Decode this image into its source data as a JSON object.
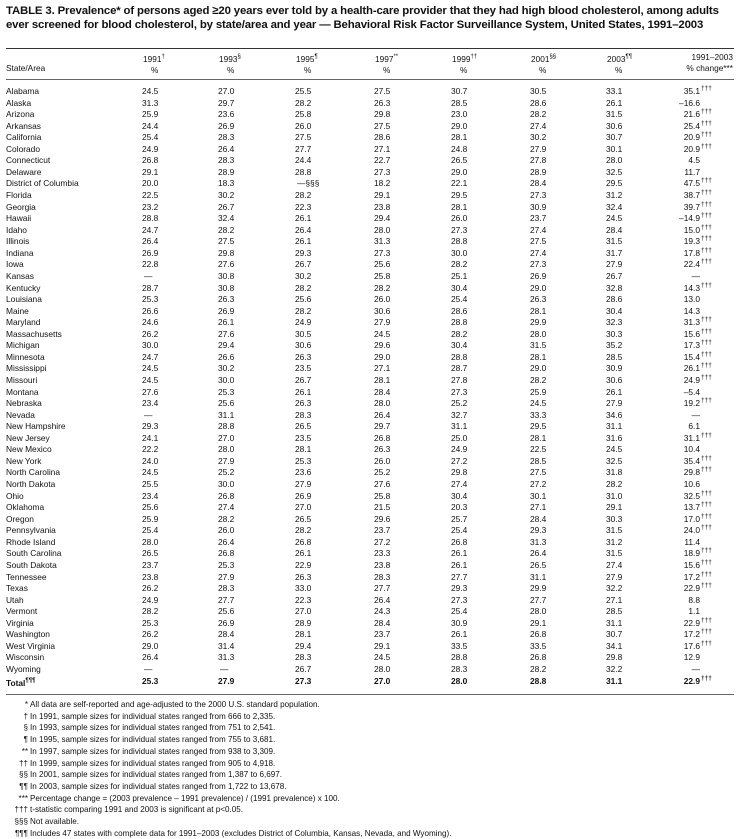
{
  "title": "TABLE 3. Prevalence* of persons aged ≥20 years ever told by a health-care provider that they had high blood cholesterol, among adults ever screened for blood cholesterol, by state/area and year — Behavioral Risk Factor Surveillance System, United States, 1991–2003",
  "headers": {
    "state": "State/Area",
    "years": [
      {
        "year": "1991",
        "mark": "†",
        "unit": "%"
      },
      {
        "year": "1993",
        "mark": "§",
        "unit": "%"
      },
      {
        "year": "1995",
        "mark": "¶",
        "unit": "%"
      },
      {
        "year": "1997",
        "mark": "**",
        "unit": "%"
      },
      {
        "year": "1999",
        "mark": "††",
        "unit": "%"
      },
      {
        "year": "2001",
        "mark": "§§",
        "unit": "%"
      },
      {
        "year": "2003",
        "mark": "¶¶",
        "unit": "%"
      }
    ],
    "change_top": "1991–2003",
    "change_bottom": "% change***"
  },
  "rows": [
    [
      "Alabama",
      "24.5",
      "27.0",
      "25.5",
      "27.5",
      "30.7",
      "30.5",
      "33.1",
      "35.1",
      "†††"
    ],
    [
      "Alaska",
      "31.3",
      "29.7",
      "28.2",
      "26.3",
      "28.5",
      "28.6",
      "26.1",
      "–16.6",
      ""
    ],
    [
      "Arizona",
      "25.9",
      "23.6",
      "25.8",
      "29.8",
      "23.0",
      "28.2",
      "31.5",
      "21.6",
      "†††"
    ],
    [
      "Arkansas",
      "24.4",
      "26.9",
      "26.0",
      "27.5",
      "29.0",
      "27.4",
      "30.6",
      "25.4",
      "†††"
    ],
    [
      "California",
      "25.4",
      "28.3",
      "27.5",
      "28.6",
      "28.1",
      "30.2",
      "30.7",
      "20.9",
      "†††"
    ],
    [
      "Colorado",
      "24.9",
      "26.4",
      "27.7",
      "27.1",
      "24.8",
      "27.9",
      "30.1",
      "20.9",
      "†††"
    ],
    [
      "Connecticut",
      "26.8",
      "28.3",
      "24.4",
      "22.7",
      "26.5",
      "27.8",
      "28.0",
      "4.5",
      ""
    ],
    [
      "Delaware",
      "29.1",
      "28.9",
      "28.8",
      "27.3",
      "29.0",
      "28.9",
      "32.5",
      "11.7",
      ""
    ],
    [
      "District of Columbia",
      "20.0",
      "18.3",
      "—§§§",
      "18.2",
      "22.1",
      "28.4",
      "29.5",
      "47.5",
      "†††"
    ],
    [
      "Florida",
      "22.5",
      "30.2",
      "28.2",
      "29.1",
      "29.5",
      "27.3",
      "31.2",
      "38.7",
      "†††"
    ],
    [
      "Georgia",
      "23.2",
      "26.7",
      "22.3",
      "23.8",
      "28.1",
      "30.9",
      "32.4",
      "39.7",
      "†††"
    ],
    [
      "Hawaii",
      "28.8",
      "32.4",
      "26.1",
      "29.4",
      "26.0",
      "23.7",
      "24.5",
      "–14.9",
      "†††"
    ],
    [
      "Idaho",
      "24.7",
      "28.2",
      "26.4",
      "28.0",
      "27.3",
      "27.4",
      "28.4",
      "15.0",
      "†††"
    ],
    [
      "Illinois",
      "26.4",
      "27.5",
      "26.1",
      "31.3",
      "28.8",
      "27.5",
      "31.5",
      "19.3",
      "†††"
    ],
    [
      "Indiana",
      "26.9",
      "29.8",
      "29.3",
      "27.3",
      "30.0",
      "27.4",
      "31.7",
      "17.8",
      "†††"
    ],
    [
      "Iowa",
      "22.8",
      "27.6",
      "26.7",
      "25.6",
      "28.2",
      "27.3",
      "27.9",
      "22.4",
      "†††"
    ],
    [
      "Kansas",
      "—",
      "30.8",
      "30.2",
      "25.8",
      "25.1",
      "26.9",
      "26.7",
      "—",
      ""
    ],
    [
      "Kentucky",
      "28.7",
      "30.8",
      "28.2",
      "28.2",
      "30.4",
      "29.0",
      "32.8",
      "14.3",
      "†††"
    ],
    [
      "Louisiana",
      "25.3",
      "26.3",
      "25.6",
      "26.0",
      "25.4",
      "26.3",
      "28.6",
      "13.0",
      ""
    ],
    [
      "Maine",
      "26.6",
      "26.9",
      "28.2",
      "30.6",
      "28.6",
      "28.1",
      "30.4",
      "14.3",
      ""
    ],
    [
      "Maryland",
      "24.6",
      "26.1",
      "24.9",
      "27.9",
      "28.8",
      "29.9",
      "32.3",
      "31.3",
      "†††"
    ],
    [
      "Massachusetts",
      "26.2",
      "27.6",
      "30.5",
      "24.5",
      "28.2",
      "28.0",
      "30.3",
      "15.6",
      "†††"
    ],
    [
      "Michigan",
      "30.0",
      "29.4",
      "30.6",
      "29.6",
      "30.4",
      "31.5",
      "35.2",
      "17.3",
      "†††"
    ],
    [
      "Minnesota",
      "24.7",
      "26.6",
      "26.3",
      "29.0",
      "28.8",
      "28.1",
      "28.5",
      "15.4",
      "†††"
    ],
    [
      "Mississippi",
      "24.5",
      "30.2",
      "23.5",
      "27.1",
      "28.7",
      "29.0",
      "30.9",
      "26.1",
      "†††"
    ],
    [
      "Missouri",
      "24.5",
      "30.0",
      "26.7",
      "28.1",
      "27.8",
      "28.2",
      "30.6",
      "24.9",
      "†††"
    ],
    [
      "Montana",
      "27.6",
      "25.3",
      "26.1",
      "28.4",
      "27.3",
      "25.9",
      "26.1",
      "–5.4",
      ""
    ],
    [
      "Nebraska",
      "23.4",
      "25.6",
      "26.3",
      "28.0",
      "25.2",
      "24.5",
      "27.9",
      "19.2",
      "†††"
    ],
    [
      "Nevada",
      "—",
      "31.1",
      "28.3",
      "26.4",
      "32.7",
      "33.3",
      "34.6",
      "—",
      ""
    ],
    [
      "New Hampshire",
      "29.3",
      "28.8",
      "26.5",
      "29.7",
      "31.1",
      "29.5",
      "31.1",
      "6.1",
      ""
    ],
    [
      "New Jersey",
      "24.1",
      "27.0",
      "23.5",
      "26.8",
      "25.0",
      "28.1",
      "31.6",
      "31.1",
      "†††"
    ],
    [
      "New Mexico",
      "22.2",
      "28.0",
      "28.1",
      "26.3",
      "24.9",
      "22.5",
      "24.5",
      "10.4",
      ""
    ],
    [
      "New York",
      "24.0",
      "27.9",
      "25.3",
      "26.0",
      "27.2",
      "28.5",
      "32.5",
      "35.4",
      "†††"
    ],
    [
      "North Carolina",
      "24.5",
      "25.2",
      "23.6",
      "25.2",
      "29.8",
      "27.5",
      "31.8",
      "29.8",
      "†††"
    ],
    [
      "North Dakota",
      "25.5",
      "30.0",
      "27.9",
      "27.6",
      "27.4",
      "27.2",
      "28.2",
      "10.6",
      ""
    ],
    [
      "Ohio",
      "23.4",
      "26.8",
      "26.9",
      "25.8",
      "30.4",
      "30.1",
      "31.0",
      "32.5",
      "†††"
    ],
    [
      "Oklahoma",
      "25.6",
      "27.4",
      "27.0",
      "21.5",
      "20.3",
      "27.1",
      "29.1",
      "13.7",
      "†††"
    ],
    [
      "Oregon",
      "25.9",
      "28.2",
      "26.5",
      "29.6",
      "25.7",
      "28.4",
      "30.3",
      "17.0",
      "†††"
    ],
    [
      "Pennsylvania",
      "25.4",
      "26.0",
      "28.2",
      "23.7",
      "25.4",
      "29.3",
      "31.5",
      "24.0",
      "†††"
    ],
    [
      "Rhode Island",
      "28.0",
      "26.4",
      "26.8",
      "27.2",
      "26.8",
      "31.3",
      "31.2",
      "11.4",
      ""
    ],
    [
      "South Carolina",
      "26.5",
      "26.8",
      "26.1",
      "23.3",
      "26.1",
      "26.4",
      "31.5",
      "18.9",
      "†††"
    ],
    [
      "South Dakota",
      "23.7",
      "25.3",
      "22.9",
      "23.8",
      "26.1",
      "26.5",
      "27.4",
      "15.6",
      "†††"
    ],
    [
      "Tennessee",
      "23.8",
      "27.9",
      "26.3",
      "28.3",
      "27.7",
      "31.1",
      "27.9",
      "17.2",
      "†††"
    ],
    [
      "Texas",
      "26.2",
      "28.3",
      "33.0",
      "27.7",
      "29.3",
      "29.9",
      "32.2",
      "22.9",
      "†††"
    ],
    [
      "Utah",
      "24.9",
      "27.7",
      "22.3",
      "26.4",
      "27.3",
      "27.7",
      "27.1",
      "8.8",
      ""
    ],
    [
      "Vermont",
      "28.2",
      "25.6",
      "27.0",
      "24.3",
      "25.4",
      "28.0",
      "28.5",
      "1.1",
      ""
    ],
    [
      "Virginia",
      "25.3",
      "26.9",
      "28.9",
      "28.4",
      "30.9",
      "29.1",
      "31.1",
      "22.9",
      "†††"
    ],
    [
      "Washington",
      "26.2",
      "28.4",
      "28.1",
      "23.7",
      "26.1",
      "26.8",
      "30.7",
      "17.2",
      "†††"
    ],
    [
      "West Virginia",
      "29.0",
      "31.4",
      "29.4",
      "29.1",
      "33.5",
      "33.5",
      "34.1",
      "17.6",
      "†††"
    ],
    [
      "Wisconsin",
      "26.4",
      "31.3",
      "28.3",
      "24.5",
      "28.8",
      "26.8",
      "29.8",
      "12.9",
      ""
    ],
    [
      "Wyoming",
      "—",
      "—",
      "26.7",
      "28.0",
      "28.3",
      "28.2",
      "32.2",
      "—",
      ""
    ]
  ],
  "total": [
    "Total",
    "25.3",
    "27.9",
    "27.3",
    "27.0",
    "28.0",
    "28.8",
    "31.1",
    "22.9",
    "†††"
  ],
  "total_mark": "¶¶¶",
  "footnotes": [
    {
      "mark": "*",
      "text": "All data are self-reported and age-adjusted to the 2000 U.S. standard population."
    },
    {
      "mark": "†",
      "text": "In 1991, sample sizes for individual states ranged from 666 to 2,335."
    },
    {
      "mark": "§",
      "text": "In 1993, sample sizes for individual states ranged from 751 to 2,541."
    },
    {
      "mark": "¶",
      "text": "In 1995, sample sizes for individual states ranged from 755 to 3,681."
    },
    {
      "mark": "**",
      "text": "In 1997, sample sizes for individual states ranged from 938 to 3,309."
    },
    {
      "mark": "††",
      "text": "In 1999, sample sizes for individual states ranged from 905 to 4,918."
    },
    {
      "mark": "§§",
      "text": "In 2001, sample sizes for individual states ranged from 1,387 to 6,697."
    },
    {
      "mark": "¶¶",
      "text": "In 2003, sample sizes for individual states ranged from 1,722 to 13,678."
    },
    {
      "mark": "***",
      "text": "Percentage change = (2003 prevalence – 1991 prevalence) / (1991 prevalence) x 100."
    },
    {
      "mark": "†††",
      "text": "t-statistic comparing 1991 and 2003 is significant at p<0.05."
    },
    {
      "mark": "§§§",
      "text": "Not available."
    },
    {
      "mark": "¶¶¶",
      "text": "Includes 47 states with complete data for 1991–2003 (excludes District of Columbia, Kansas, Nevada, and Wyoming)."
    }
  ]
}
